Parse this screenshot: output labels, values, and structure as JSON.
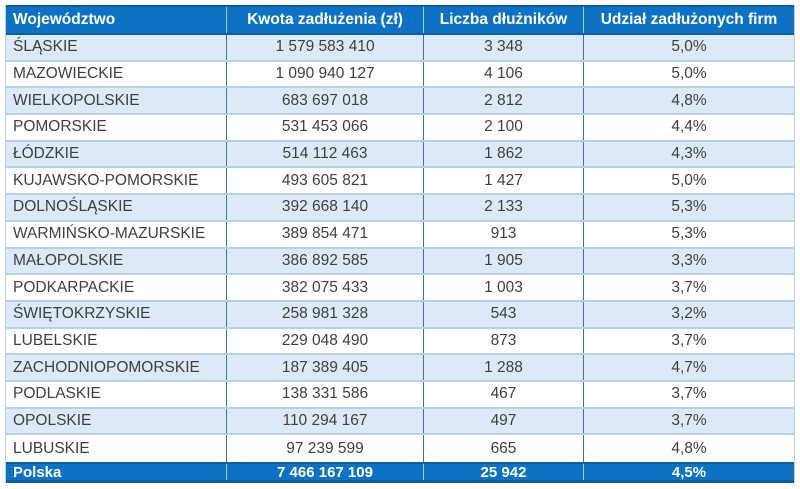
{
  "table": {
    "header": {
      "wojewodztwo": "Województwo",
      "kwota": "Kwota zadłużenia (zł)",
      "dluznicy": "Liczba dłużników",
      "udzial": "Udział zadłużonych firm"
    },
    "rows": [
      {
        "wojewodztwo": "ŚLĄSKIE",
        "kwota": "1 579 583 410",
        "dluznicy": "3 348",
        "udzial": "5,0%"
      },
      {
        "wojewodztwo": "MAZOWIECKIE",
        "kwota": "1 090 940 127",
        "dluznicy": "4 106",
        "udzial": "5,0%"
      },
      {
        "wojewodztwo": "WIELKOPOLSKIE",
        "kwota": "683 697 018",
        "dluznicy": "2 812",
        "udzial": "4,8%"
      },
      {
        "wojewodztwo": "POMORSKIE",
        "kwota": "531 453 066",
        "dluznicy": "2 100",
        "udzial": "4,4%"
      },
      {
        "wojewodztwo": "ŁÓDZKIE",
        "kwota": "514 112 463",
        "dluznicy": "1 862",
        "udzial": "4,3%"
      },
      {
        "wojewodztwo": "KUJAWSKO-POMORSKIE",
        "kwota": "493 605 821",
        "dluznicy": "1 427",
        "udzial": "5,0%"
      },
      {
        "wojewodztwo": "DOLNOŚLĄSKIE",
        "kwota": "392 668 140",
        "dluznicy": "2 133",
        "udzial": "5,3%"
      },
      {
        "wojewodztwo": "WARMIŃSKO-MAZURSKIE",
        "kwota": "389 854 471",
        "dluznicy": "913",
        "udzial": "5,3%"
      },
      {
        "wojewodztwo": "MAŁOPOLSKIE",
        "kwota": "386 892 585",
        "dluznicy": "1 905",
        "udzial": "3,3%"
      },
      {
        "wojewodztwo": "PODKARPACKIE",
        "kwota": "382 075 433",
        "dluznicy": "1 003",
        "udzial": "3,7%"
      },
      {
        "wojewodztwo": "ŚWIĘTOKRZYSKIE",
        "kwota": "258 981 328",
        "dluznicy": "543",
        "udzial": "3,2%"
      },
      {
        "wojewodztwo": "LUBELSKIE",
        "kwota": "229 048 490",
        "dluznicy": "873",
        "udzial": "3,7%"
      },
      {
        "wojewodztwo": "ZACHODNIOPOMORSKIE",
        "kwota": "187 389 405",
        "dluznicy": "1 288",
        "udzial": "4,7%"
      },
      {
        "wojewodztwo": "PODLASKIE",
        "kwota": "138 331 586",
        "dluznicy": "467",
        "udzial": "3,7%"
      },
      {
        "wojewodztwo": "OPOLSKIE",
        "kwota": "110 294 167",
        "dluznicy": "497",
        "udzial": "3,7%"
      },
      {
        "wojewodztwo": "LUBUSKIE",
        "kwota": "97 239 599",
        "dluznicy": "665",
        "udzial": "4,8%"
      }
    ],
    "total": {
      "wojewodztwo": "Polska",
      "kwota": "7 466 167 109",
      "dluznicy": "25 942",
      "udzial": "4,5%"
    }
  },
  "colors": {
    "header_bg": "#0E72C4",
    "header_text": "#FFFFFF",
    "stripe_bg": "#DCE9F6",
    "row_bg": "#FFFFFF",
    "body_text": "#3F3F3F",
    "dark_border": "#0D5E9E",
    "row_border": "#B3D0EC",
    "column_border": "#41719C",
    "outer_border": "#C2D1E2"
  },
  "chart_data": {
    "type": "table",
    "title": "",
    "columns": [
      "Województwo",
      "Kwota zadłużenia (zł)",
      "Liczba dłużników",
      "Udział zadłużonych firm"
    ],
    "rows": [
      [
        "ŚLĄSKIE",
        1579583410,
        3348,
        "5,0%"
      ],
      [
        "MAZOWIECKIE",
        1090940127,
        4106,
        "5,0%"
      ],
      [
        "WIELKOPOLSKIE",
        683697018,
        2812,
        "4,8%"
      ],
      [
        "POMORSKIE",
        531453066,
        2100,
        "4,4%"
      ],
      [
        "ŁÓDZKIE",
        514112463,
        1862,
        "4,3%"
      ],
      [
        "KUJAWSKO-POMORSKIE",
        493605821,
        1427,
        "5,0%"
      ],
      [
        "DOLNOŚLĄSKIE",
        392668140,
        2133,
        "5,3%"
      ],
      [
        "WARMIŃSKO-MAZURSKIE",
        389854471,
        913,
        "5,3%"
      ],
      [
        "MAŁOPOLSKIE",
        386892585,
        1905,
        "3,3%"
      ],
      [
        "PODKARPACKIE",
        382075433,
        1003,
        "3,7%"
      ],
      [
        "ŚWIĘTOKRZYSKIE",
        258981328,
        543,
        "3,2%"
      ],
      [
        "LUBELSKIE",
        229048490,
        873,
        "3,7%"
      ],
      [
        "ZACHODNIOPOMORSKIE",
        187389405,
        1288,
        "4,7%"
      ],
      [
        "PODLASKIE",
        138331586,
        467,
        "3,7%"
      ],
      [
        "OPOLSKIE",
        110294167,
        497,
        "3,7%"
      ],
      [
        "LUBUSKIE",
        97239599,
        665,
        "4,8%"
      ]
    ],
    "total_row": [
      "Polska",
      7466167109,
      25942,
      "4,5%"
    ],
    "layout_hints": {
      "striped_rows": true,
      "header_position": "top",
      "total_row_position": "bottom",
      "alignment": [
        "left",
        "center",
        "center",
        "center"
      ]
    }
  }
}
